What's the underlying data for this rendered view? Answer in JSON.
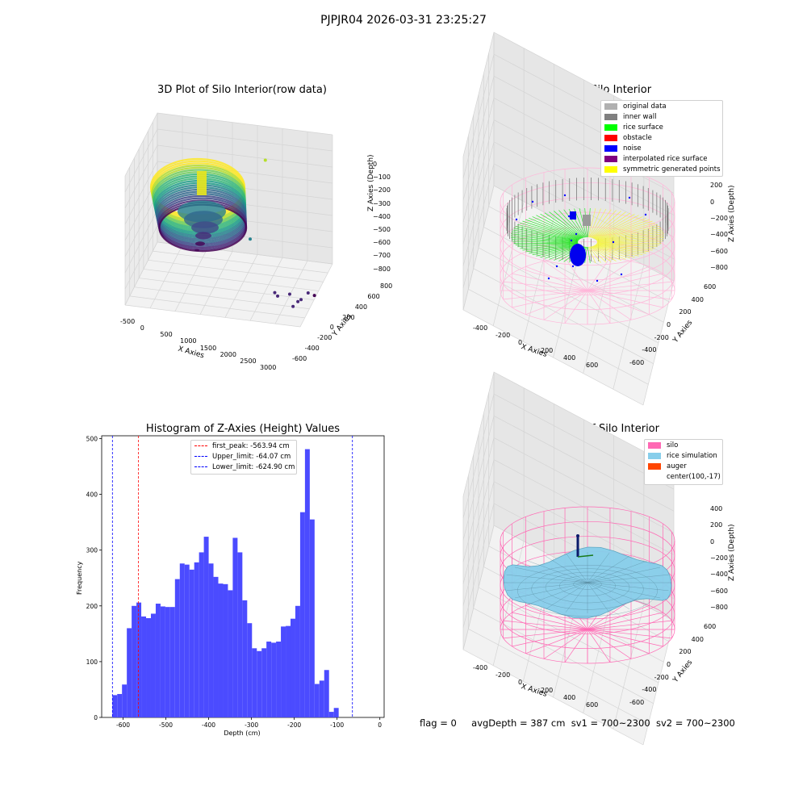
{
  "suptitle": "PJPJR04 2026-03-31 23:25:27",
  "chart_data": [
    {
      "type": "scatter",
      "title": "3D Plot of Silo Interior(row data)",
      "xlabel": "X Axies",
      "ylabel": "Y Axies",
      "zlabel": "Z Axies (Depth)",
      "x_ticks": [
        "-500",
        "0",
        "500",
        "1000",
        "1500",
        "2000",
        "2500",
        "3000"
      ],
      "y_ticks": [
        "-600",
        "-400",
        "-200",
        "0",
        "200",
        "400",
        "600",
        "800"
      ],
      "z_ticks": [
        "0",
        "−100",
        "−200",
        "−300",
        "−400",
        "−500",
        "−600",
        "−700",
        "−800"
      ],
      "colormap": "viridis",
      "outliers": [
        [
          1750,
          600,
          -160
        ],
        [
          1650,
          160,
          -530
        ],
        [
          2270,
          -120,
          -760
        ],
        [
          2420,
          -320,
          -720
        ],
        [
          2550,
          -80,
          -770
        ],
        [
          2700,
          -260,
          -790
        ],
        [
          2760,
          -180,
          -780
        ],
        [
          2800,
          -130,
          -780
        ],
        [
          2900,
          -40,
          -760
        ],
        [
          2980,
          60,
          -800
        ]
      ]
    },
    {
      "type": "scatter",
      "title": "3D classify of Silo Interior",
      "xlabel": "X Axies",
      "ylabel": "Y Axies",
      "zlabel": "Z Axies (Depth)",
      "x_ticks": [
        "-400",
        "-200",
        "0",
        "200",
        "400",
        "600"
      ],
      "y_ticks": [
        "-600",
        "-400",
        "-200",
        "0",
        "200",
        "400",
        "600"
      ],
      "z_ticks": [
        "400",
        "200",
        "0",
        "−200",
        "−400",
        "−600",
        "−800"
      ],
      "legend": [
        {
          "label": "original data",
          "color": "#b0b0b0"
        },
        {
          "label": "inner wall",
          "color": "#808080"
        },
        {
          "label": "rice surface",
          "color": "#00ff00"
        },
        {
          "label": "obstacle",
          "color": "#ff0000"
        },
        {
          "label": "noise",
          "color": "#0000ff"
        },
        {
          "label": "interpolated rice surface",
          "color": "#800080"
        },
        {
          "label": "symmetric generated points",
          "color": "#ffff00"
        }
      ],
      "silo_color": "#ff69b4"
    },
    {
      "type": "bar",
      "title": "Histogram of Z-Axies (Height) Values",
      "xlabel": "Depth (cm)",
      "ylabel": "Frequency",
      "bar_color": "#4b4bff",
      "xlim": [
        -650,
        10
      ],
      "ylim": [
        0,
        505
      ],
      "x_ticks": [
        -600,
        -500,
        -400,
        -300,
        -200,
        -100,
        0
      ],
      "y_ticks": [
        0,
        100,
        200,
        300,
        400,
        500
      ],
      "bin_start": -625,
      "bin_width": 11.25,
      "values": [
        40,
        42,
        59,
        160,
        200,
        206,
        181,
        178,
        186,
        204,
        199,
        198,
        198,
        248,
        276,
        274,
        265,
        278,
        296,
        324,
        276,
        252,
        240,
        239,
        228,
        322,
        296,
        210,
        169,
        124,
        119,
        124,
        136,
        134,
        136,
        163,
        164,
        177,
        200,
        368,
        481,
        355,
        60,
        66,
        85,
        10,
        17
      ],
      "vlines": [
        {
          "label": "first_peak: -563.94 cm",
          "x": -563.94,
          "color": "#ff0000"
        },
        {
          "label": "Upper_limit: -64.07 cm",
          "x": -64.07,
          "color": "#0000ff"
        },
        {
          "label": "Lower_limit: -624.90 cm",
          "x": -624.9,
          "color": "#0000ff"
        }
      ]
    },
    {
      "type": "surface",
      "title": "3D simulation of Silo Interior",
      "xlabel": "X Axies",
      "ylabel": "Y Axies",
      "zlabel": "Z Axies (Depth)",
      "x_ticks": [
        "-400",
        "-200",
        "0",
        "200",
        "400",
        "600"
      ],
      "y_ticks": [
        "-600",
        "-400",
        "-200",
        "0",
        "200",
        "400",
        "600"
      ],
      "z_ticks": [
        "400",
        "200",
        "0",
        "−200",
        "−400",
        "−600",
        "−800"
      ],
      "legend": [
        {
          "label": "silo",
          "color": "#ff69b4"
        },
        {
          "label": "rice simulation",
          "color": "#87ceeb"
        },
        {
          "label": "auger",
          "color": "#ff4500"
        },
        {
          "label": "center(100,-17)",
          "color": "#ffffff"
        }
      ]
    }
  ],
  "footer": {
    "flag": "flag = 0",
    "avg": "avgDepth = 387 cm",
    "sv1": "sv1 = 700~2300",
    "sv2": "sv2 = 700~2300"
  }
}
